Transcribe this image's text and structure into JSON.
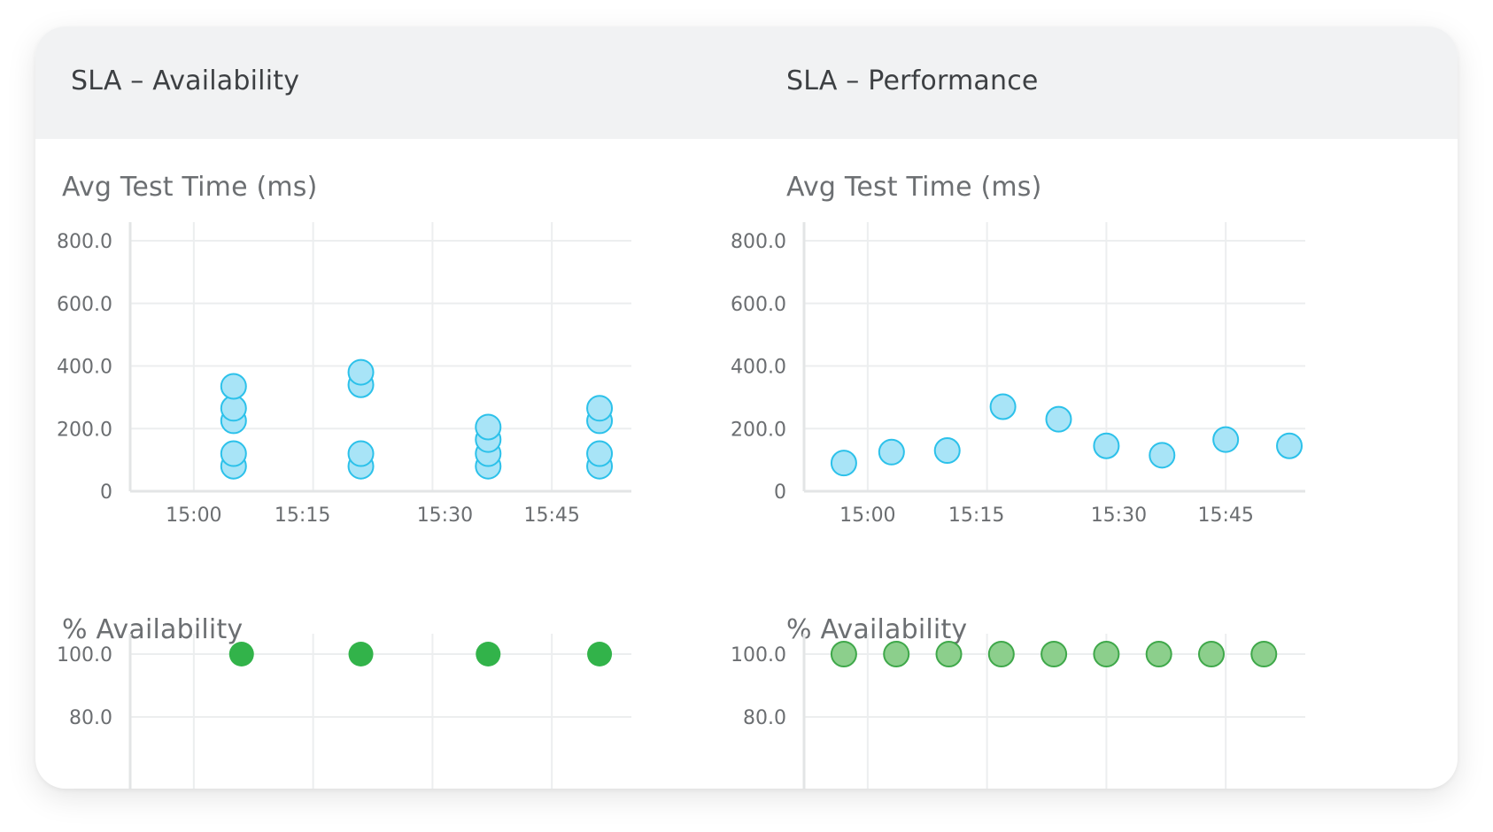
{
  "panels": [
    {
      "title": "SLA – Availability"
    },
    {
      "title": "SLA – Performance"
    }
  ],
  "colors": {
    "header_bg": "#f1f2f3",
    "grid": "#eceeef",
    "axis": "#e3e5e6",
    "perf_fill": "#a8e4f7",
    "perf_stroke": "#2cc1ea",
    "avail_green": "#32b34a",
    "avail_green_light": "#8ccf8c",
    "avail_green_light_stroke": "#3fa84a"
  },
  "chart_data": [
    {
      "id": "avail-testtime",
      "type": "scatter",
      "title": "Avg Test Time (ms)",
      "x_ticks": [
        "15:00",
        "15:15",
        "15:30",
        "15:45"
      ],
      "x_unit": "minutes after 15:00",
      "xlim": [
        -8,
        55
      ],
      "ylim": [
        0,
        800
      ],
      "y_ticks": [
        0,
        200,
        400,
        600,
        800
      ],
      "y_tick_labels": [
        "0",
        "200.0",
        "400.0",
        "600.0",
        "800.0"
      ],
      "series": [
        {
          "values": [
            [
              5,
              80
            ],
            [
              5,
              120
            ],
            [
              5,
              225
            ],
            [
              5,
              265
            ],
            [
              5,
              335
            ],
            [
              21,
              80
            ],
            [
              21,
              120
            ],
            [
              21,
              340
            ],
            [
              21,
              380
            ],
            [
              37,
              80
            ],
            [
              37,
              120
            ],
            [
              37,
              165
            ],
            [
              37,
              205
            ],
            [
              51,
              80
            ],
            [
              51,
              120
            ],
            [
              51,
              225
            ],
            [
              51,
              265
            ]
          ]
        }
      ],
      "grid": true
    },
    {
      "id": "avail-pct",
      "type": "scatter",
      "title": "% Availability",
      "x_unit": "minutes after 15:00",
      "xlim": [
        -8,
        55
      ],
      "ylim": [
        80,
        100
      ],
      "y_ticks": [
        80,
        100
      ],
      "y_tick_labels": [
        "80.0",
        "100.0"
      ],
      "series": [
        {
          "values": [
            [
              6,
              100
            ],
            [
              21,
              100
            ],
            [
              37,
              100
            ],
            [
              51,
              100
            ]
          ]
        }
      ],
      "grid": true
    },
    {
      "id": "perf-testtime",
      "type": "scatter",
      "title": "Avg Test Time (ms)",
      "x_ticks": [
        "15:00",
        "15:15",
        "15:30",
        "15:45"
      ],
      "x_unit": "minutes after 15:00",
      "xlim": [
        -8,
        55
      ],
      "ylim": [
        0,
        800
      ],
      "y_ticks": [
        0,
        200,
        400,
        600,
        800
      ],
      "y_tick_labels": [
        "0",
        "200.0",
        "400.0",
        "600.0",
        "800.0"
      ],
      "series": [
        {
          "values": [
            [
              -3,
              90
            ],
            [
              3,
              125
            ],
            [
              10,
              130
            ],
            [
              17,
              270
            ],
            [
              24,
              230
            ],
            [
              30,
              145
            ],
            [
              37,
              115
            ],
            [
              45,
              165
            ],
            [
              53,
              145
            ]
          ]
        }
      ],
      "grid": true
    },
    {
      "id": "perf-pct",
      "type": "scatter",
      "title": "% Availability",
      "x_unit": "minutes after 15:00",
      "xlim": [
        -8,
        55
      ],
      "ylim": [
        80,
        100
      ],
      "y_ticks": [
        80,
        100
      ],
      "y_tick_labels": [
        "80.0",
        "100.0"
      ],
      "series": [
        {
          "values": [
            [
              -3,
              100
            ],
            [
              3.6,
              100
            ],
            [
              10.2,
              100
            ],
            [
              16.8,
              100
            ],
            [
              23.4,
              100
            ],
            [
              30,
              100
            ],
            [
              36.6,
              100
            ],
            [
              43.2,
              100
            ],
            [
              49.8,
              100
            ]
          ]
        }
      ],
      "grid": true
    }
  ]
}
